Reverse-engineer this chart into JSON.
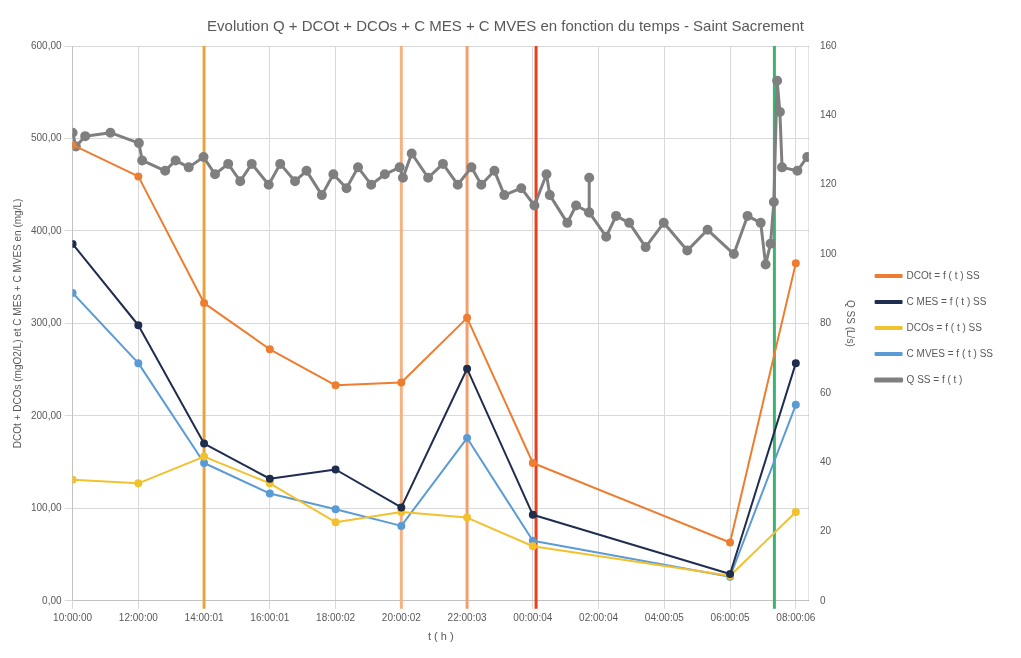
{
  "chart_data": {
    "type": "line",
    "title": "Evolution Q + DCOt + DCOs + C MES + C MVES en fonction du temps - Saint Sacrement",
    "xlabel": "t ( h )",
    "ylabel": "DCOt + DCOs (mgO2/L) et C MES + C MVES en (mg/L)",
    "y2label": "Q SS (L/s)",
    "x": [
      "--01-01T10:00:00",
      "--01-01T12:00:00",
      "--01-01T14:00:01",
      "--01-01T16:00:01",
      "--01-01T18:00:02",
      "--01-01T20:00:02",
      "--01-01T22:00:03",
      "--01-02T00:00:04",
      "--01-02T06:00:05",
      "--01-02T08:00:06"
    ],
    "series": [
      {
        "name": "DCOt = f ( t ) SS",
        "color": "#ed7d31",
        "values": [
          493,
          459,
          322,
          272,
          233,
          236,
          306,
          149,
          63,
          365
        ]
      },
      {
        "name": "C MES = f ( t ) SS",
        "color": "#1f2d4e",
        "values": [
          386,
          298,
          170,
          132,
          142,
          101,
          251,
          93,
          29,
          257
        ]
      },
      {
        "name": "DCOs = f ( t ) SS",
        "color": "#f2c12e",
        "values": [
          131,
          127,
          156,
          127,
          85,
          96,
          90,
          59,
          27,
          96
        ]
      },
      {
        "name": "C MVES = f ( t ) SS",
        "color": "#5b9bd5",
        "values": [
          333,
          257,
          149,
          116,
          99,
          81,
          176,
          65,
          26,
          212
        ]
      },
      {
        "name": "Q SS = f ( t )",
        "color": "#7f7f7f",
        "axis": "y2",
        "x": [
          "--01-01T10:00",
          "--01-01T10:06",
          "--01-01T10:23",
          "--01-01T11:09",
          "--01-01T12:01",
          "--01-01T12:07",
          "--01-01T12:49",
          "--01-01T13:08",
          "--01-01T13:32",
          "--01-01T13:59",
          "--01-01T14:20",
          "--01-01T14:44",
          "--01-01T15:06",
          "--01-01T15:27",
          "--01-01T15:58",
          "--01-01T16:19",
          "--01-01T16:46",
          "--01-01T17:07",
          "--01-01T17:35",
          "--01-01T17:56",
          "--01-01T18:20",
          "--01-01T18:41",
          "--01-01T19:05",
          "--01-01T19:30",
          "--01-01T19:57",
          "--01-01T20:03",
          "--01-01T20:19",
          "--01-01T20:49",
          "--01-01T21:16",
          "--01-01T21:43",
          "--01-01T22:08",
          "--01-01T22:26",
          "--01-01T22:50",
          "--01-01T23:08",
          "--01-01T23:39",
          "--01-02T00:03",
          "--01-02T00:25",
          "--01-02T00:31",
          "--01-02T01:03",
          "--01-02T01:19",
          "--01-02T01:43",
          "--01-02T01:43",
          "--01-02T01:43",
          "--01-02T02:14",
          "--01-02T02:32",
          "--01-02T02:56",
          "--01-02T03:26",
          "--01-02T03:59",
          "--01-02T04:42",
          "--01-02T05:19",
          "--01-02T06:07",
          "--01-02T06:32",
          "--01-02T06:56",
          "--01-02T07:05",
          "--01-02T07:14",
          "--01-02T07:20",
          "--01-02T07:26",
          "--01-02T07:31",
          "--01-02T07:35",
          "--01-02T08:03",
          "--01-02T08:21"
        ],
        "values": [
          135,
          131,
          134,
          135,
          132,
          127,
          124,
          127,
          125,
          128,
          123,
          126,
          121,
          126,
          120,
          126,
          121,
          124,
          117,
          123,
          119,
          125,
          120,
          123,
          125,
          122,
          129,
          122,
          126,
          120,
          125,
          120,
          124,
          117,
          119,
          114,
          123,
          117,
          109,
          114,
          112,
          122,
          112,
          105,
          111,
          109,
          102,
          109,
          101,
          107,
          100,
          111,
          109,
          97,
          103,
          115,
          150,
          141,
          125,
          124,
          128
        ]
      }
    ],
    "xlim": [
      "--01-01T10:00",
      "--01-02T08:24"
    ],
    "xticks": [
      {
        "value": "--01-01T10:00:00",
        "label": "10:00:00"
      },
      {
        "value": "--01-01T12:00:00",
        "label": "12:00:00"
      },
      {
        "value": "--01-01T14:00:01",
        "label": "14:00:01"
      },
      {
        "value": "--01-01T16:00:01",
        "label": "16:00:01"
      },
      {
        "value": "--01-01T18:00:02",
        "label": "18:00:02"
      },
      {
        "value": "--01-01T20:00:02",
        "label": "20:00:02"
      },
      {
        "value": "--01-01T22:00:03",
        "label": "22:00:03"
      },
      {
        "value": "--01-02T00:00:04",
        "label": "00:00:04"
      },
      {
        "value": "--01-02T02:00:04",
        "label": "02:00:04"
      },
      {
        "value": "--01-02T04:00:05",
        "label": "04:00:05"
      },
      {
        "value": "--01-02T06:00:05",
        "label": "06:00:05"
      },
      {
        "value": "--01-02T08:00:06",
        "label": "08:00:06"
      }
    ],
    "ylim": [
      0,
      600
    ],
    "yticks": [
      {
        "value": 0,
        "label": "0,00"
      },
      {
        "value": 100,
        "label": "100,00"
      },
      {
        "value": 200,
        "label": "200,00"
      },
      {
        "value": 300,
        "label": "300,00"
      },
      {
        "value": 400,
        "label": "400,00"
      },
      {
        "value": 500,
        "label": "500,00"
      },
      {
        "value": 600,
        "label": "600,00"
      }
    ],
    "y2lim": [
      0,
      160
    ],
    "y2ticks": [
      0,
      20,
      40,
      60,
      80,
      100,
      120,
      140,
      160
    ],
    "ref_lines": [
      {
        "axis": "x",
        "value": "--01-01T14:00:01",
        "color": "#e8a33c"
      },
      {
        "axis": "x",
        "value": "--01-01T20:00:02",
        "color": "#f4b183"
      },
      {
        "axis": "x",
        "value": "--01-01T22:00:03",
        "color": "#f0a070"
      },
      {
        "axis": "x",
        "value": "--01-02T00:06",
        "color": "#e8401c"
      },
      {
        "axis": "x",
        "value": "--01-02T07:21",
        "color": "#3cb371"
      }
    ],
    "grid": true,
    "legend": "right",
    "marker": "circle",
    "line_style": "solid"
  }
}
